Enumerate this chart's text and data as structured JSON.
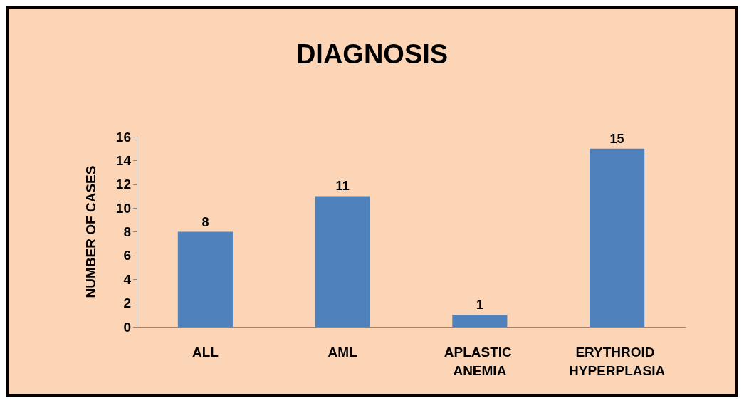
{
  "chart_data": {
    "type": "bar",
    "title": "DIAGNOSIS",
    "ylabel": "NUMBER OF CASES",
    "categories": [
      "ALL",
      "AML",
      "APLASTIC ANEMIA",
      "ERYTHROID HYPERPLASIA"
    ],
    "values": [
      8,
      11,
      1,
      15
    ],
    "color": "#4f81bd",
    "ylim": [
      0,
      16
    ],
    "yticks": [
      0,
      2,
      4,
      6,
      8,
      10,
      12,
      14,
      16
    ],
    "grid": false,
    "data_labels": true
  }
}
